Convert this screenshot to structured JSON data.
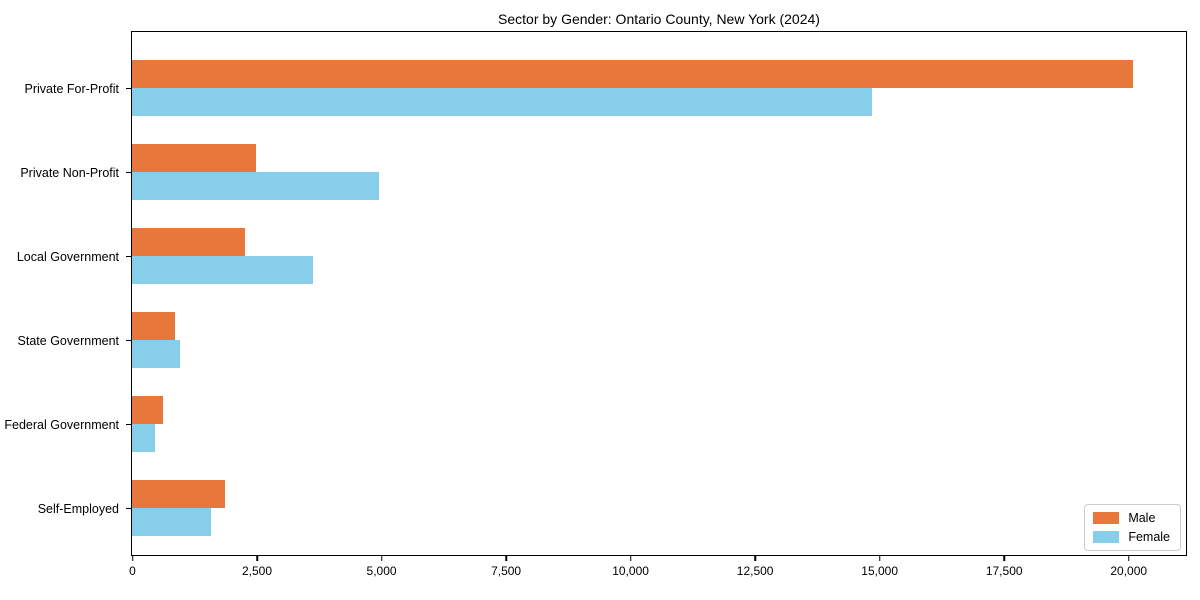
{
  "chart_data": {
    "type": "bar",
    "orientation": "horizontal",
    "title": "Sector by Gender: Ontario County, New York (2024)",
    "categories": [
      "Private For-Profit",
      "Private Non-Profit",
      "Local Government",
      "State Government",
      "Federal Government",
      "Self-Employed"
    ],
    "series": [
      {
        "name": "Male",
        "color": "#e8773b",
        "values": [
          20100,
          2490,
          2260,
          870,
          620,
          1860
        ]
      },
      {
        "name": "Female",
        "color": "#87ceeb",
        "values": [
          14860,
          4960,
          3630,
          960,
          460,
          1590
        ]
      }
    ],
    "xlabel": "",
    "ylabel": "",
    "xlim": [
      0,
      21140
    ],
    "xticks": [
      0,
      2500,
      5000,
      7500,
      10000,
      12500,
      15000,
      17500,
      20000
    ],
    "xtick_labels": [
      "0",
      "2,500",
      "5,000",
      "7,500",
      "10,000",
      "12,500",
      "15,000",
      "17,500",
      "20,000"
    ],
    "grid": false,
    "legend": {
      "position": "lower right",
      "entries": [
        "Male",
        "Female"
      ]
    }
  }
}
